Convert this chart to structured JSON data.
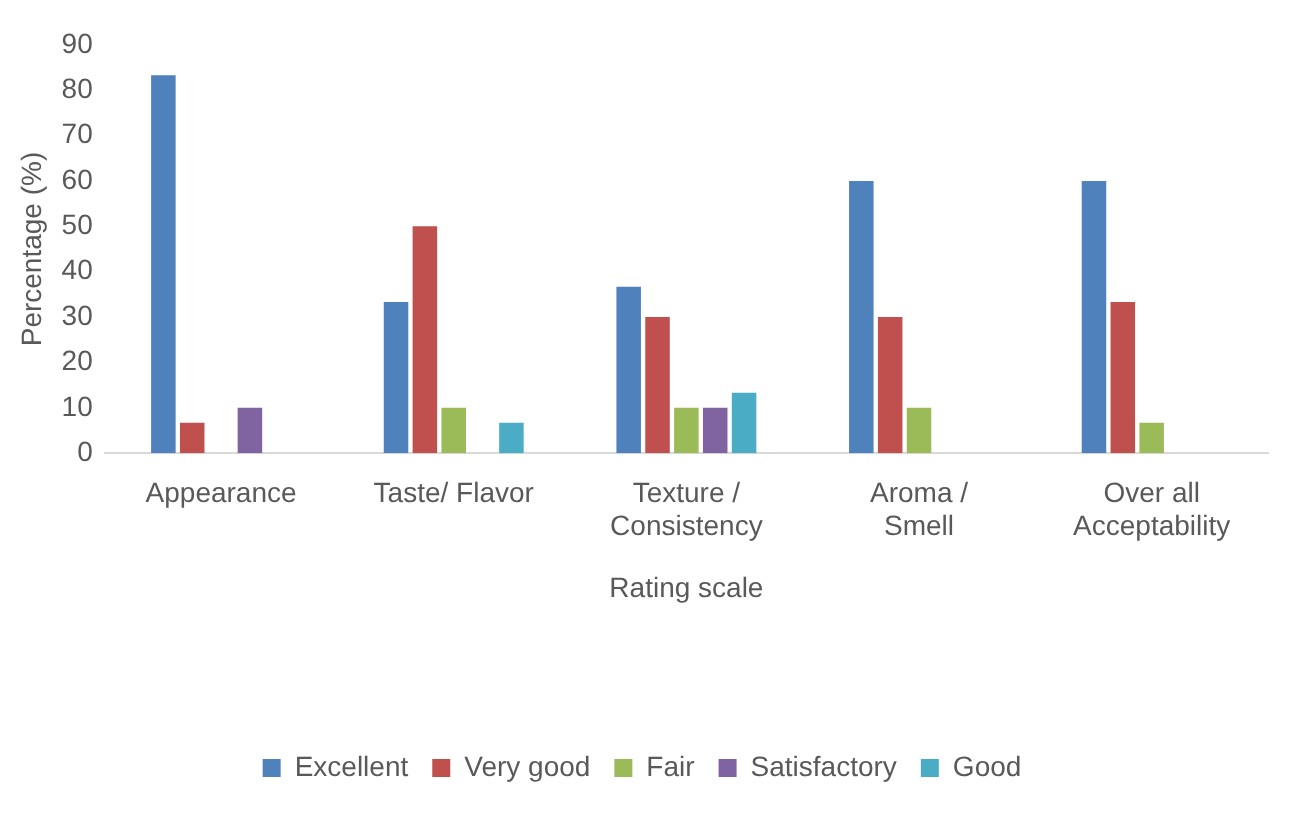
{
  "chart_data": {
    "type": "bar",
    "xlabel": "Rating scale",
    "ylabel": "Percentage (%)",
    "categories": [
      "Appearance",
      "Taste/ Flavor",
      "Texture / Consistency",
      "Aroma / Smell",
      "Over all Acceptability"
    ],
    "series": [
      {
        "name": "Excellent",
        "color": "#4f81bd",
        "values": [
          83.3,
          33.3,
          36.7,
          60,
          60
        ]
      },
      {
        "name": "Very good",
        "color": "#c0504d",
        "values": [
          6.7,
          50,
          30,
          30,
          33.3
        ]
      },
      {
        "name": "Fair",
        "color": "#9bbb59",
        "values": [
          0,
          10,
          10,
          10,
          6.7
        ]
      },
      {
        "name": "Satisfactory",
        "color": "#8064a2",
        "values": [
          10,
          0,
          10,
          0,
          0
        ]
      },
      {
        "name": "Good",
        "color": "#4bacc6",
        "values": [
          0,
          6.7,
          13.3,
          0,
          0
        ]
      }
    ],
    "ylim": [
      0,
      90
    ],
    "yticks": [
      0,
      10,
      20,
      30,
      40,
      50,
      60,
      70,
      80,
      90
    ],
    "grid": false,
    "legend": "bottom"
  }
}
